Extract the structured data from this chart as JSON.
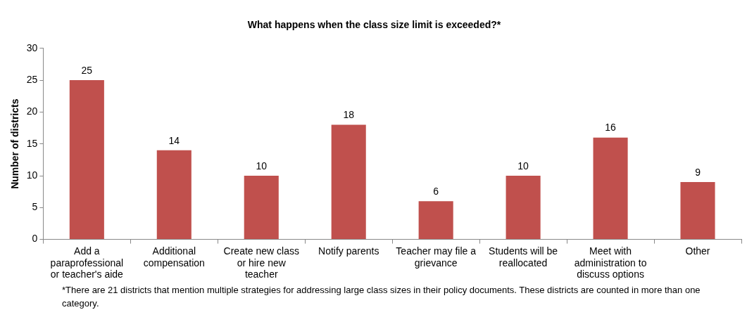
{
  "chart_data": {
    "type": "bar",
    "title": "What happens when the class size limit is exceeded?*",
    "ylabel": "Number of districts",
    "categories": [
      "Add a paraprofessional or teacher's aide",
      "Additional compensation",
      "Create new class or hire new teacher",
      "Notify parents",
      "Teacher may file a grievance",
      "Students will be reallocated",
      "Meet with administration to discuss options",
      "Other"
    ],
    "values": [
      25,
      14,
      10,
      18,
      6,
      10,
      16,
      9
    ],
    "color": "#c0504d",
    "data_labels": true,
    "grid": false,
    "legend": false,
    "ylim": [
      0,
      30
    ],
    "yticks": [
      0,
      5,
      10,
      15,
      20,
      25,
      30
    ],
    "annotations": [
      "*There are 21 districts that mention multiple strategies for addressing large class sizes in their policy documents. These districts are counted in more than one category."
    ]
  }
}
